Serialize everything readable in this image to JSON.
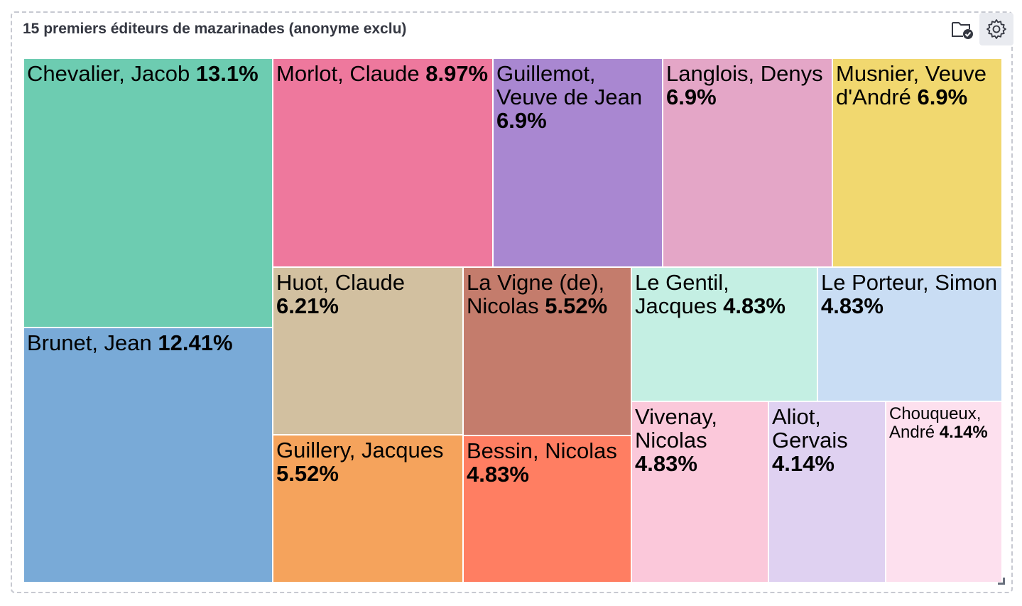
{
  "panel": {
    "title": "15 premiers éditeurs de mazarinades (anonyme exclu)",
    "actions": [
      {
        "icon": "folder-check-icon"
      },
      {
        "icon": "gear-icon"
      }
    ]
  },
  "chart_data": {
    "type": "treemap",
    "title": "15 premiers éditeurs de mazarinades (anonyme exclu)",
    "items": [
      {
        "name": "Chevalier, Jacob",
        "value": "13.1%",
        "share": 13.1,
        "color": "#6dccb1"
      },
      {
        "name": "Brunet, Jean",
        "value": "12.41%",
        "share": 12.41,
        "color": "#79aad7"
      },
      {
        "name": "Morlot, Claude",
        "value": "8.97%",
        "share": 8.97,
        "color": "#ee789d"
      },
      {
        "name": "Guillemot, Veuve de Jean",
        "value": "6.9%",
        "share": 6.9,
        "color": "#a987d1"
      },
      {
        "name": "Langlois, Denys",
        "value": "6.9%",
        "share": 6.9,
        "color": "#e4a6c7"
      },
      {
        "name": "Musnier, Veuve d'André",
        "value": "6.9%",
        "share": 6.9,
        "color": "#f1d86f"
      },
      {
        "name": "Huot, Claude",
        "value": "6.21%",
        "share": 6.21,
        "color": "#d2c0a0"
      },
      {
        "name": "Guillery, Jacques",
        "value": "5.52%",
        "share": 5.52,
        "color": "#f5a35c"
      },
      {
        "name": "La Vigne (de), Nicolas",
        "value": "5.52%",
        "share": 5.52,
        "color": "#c47c6c"
      },
      {
        "name": "Bessin, Nicolas",
        "value": "4.83%",
        "share": 4.83,
        "color": "#ff7e62"
      },
      {
        "name": "Le Gentil, Jacques",
        "value": "4.83%",
        "share": 4.83,
        "color": "#c4efe3"
      },
      {
        "name": "Le Porteur, Simon",
        "value": "4.83%",
        "share": 4.83,
        "color": "#c9ddf4"
      },
      {
        "name": "Vivenay, Nicolas",
        "value": "4.83%",
        "share": 4.83,
        "color": "#fbc8da"
      },
      {
        "name": "Aliot, Gervais",
        "value": "4.14%",
        "share": 4.14,
        "color": "#dfd1f1"
      },
      {
        "name": "Chouqueux, André",
        "value": "4.14%",
        "share": 4.14,
        "color": "#fde0ee"
      }
    ]
  }
}
